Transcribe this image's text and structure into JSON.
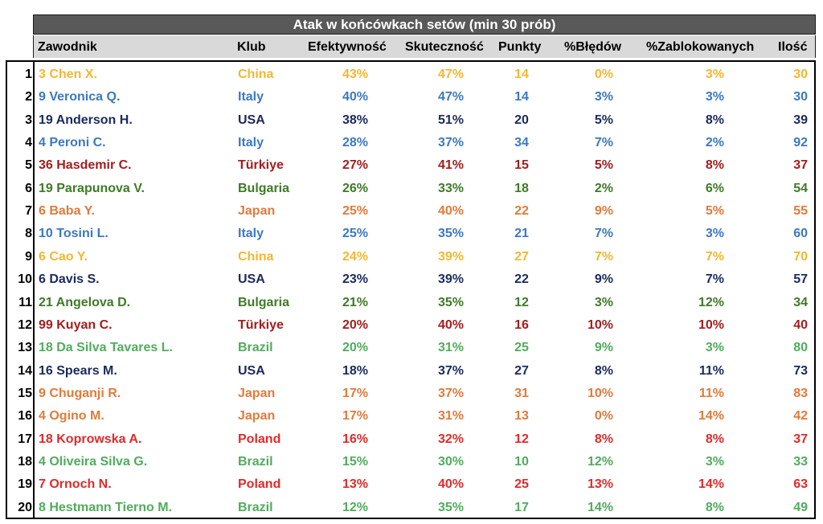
{
  "title": "Atak w końcówkach setów (min 30 prób)",
  "headers": {
    "player": "Zawodnik",
    "club": "Klub",
    "efficiency": "Efektywność",
    "effectiveness": "Skuteczność",
    "points": "Punkty",
    "errors": "%Błędów",
    "blocked": "%Zablokowanych",
    "attempts": "Ilość"
  },
  "club_colors": {
    "China": "#f5b731",
    "Italy": "#3b78c2",
    "USA": "#1a2a5e",
    "Türkiye": "#a31d1d",
    "Bulgaria": "#3f7a27",
    "Japan": "#e27a3a",
    "Brazil": "#4fad5b",
    "Poland": "#e02a2a"
  },
  "rows": [
    {
      "rank": "1",
      "player": "3 Chen X.",
      "club": "China",
      "efficiency": "43%",
      "effectiveness": "47%",
      "points": "14",
      "errors": "0%",
      "blocked": "3%",
      "attempts": "30"
    },
    {
      "rank": "2",
      "player": "9 Veronica Q.",
      "club": "Italy",
      "efficiency": "40%",
      "effectiveness": "47%",
      "points": "14",
      "errors": "3%",
      "blocked": "3%",
      "attempts": "30"
    },
    {
      "rank": "3",
      "player": "19 Anderson H.",
      "club": "USA",
      "efficiency": "38%",
      "effectiveness": "51%",
      "points": "20",
      "errors": "5%",
      "blocked": "8%",
      "attempts": "39"
    },
    {
      "rank": "4",
      "player": "4 Peroni C.",
      "club": "Italy",
      "efficiency": "28%",
      "effectiveness": "37%",
      "points": "34",
      "errors": "7%",
      "blocked": "2%",
      "attempts": "92"
    },
    {
      "rank": "5",
      "player": "36 Hasdemir C.",
      "club": "Türkiye",
      "efficiency": "27%",
      "effectiveness": "41%",
      "points": "15",
      "errors": "5%",
      "blocked": "8%",
      "attempts": "37"
    },
    {
      "rank": "6",
      "player": "19 Parapunova V.",
      "club": "Bulgaria",
      "efficiency": "26%",
      "effectiveness": "33%",
      "points": "18",
      "errors": "2%",
      "blocked": "6%",
      "attempts": "54"
    },
    {
      "rank": "7",
      "player": "6 Baba Y.",
      "club": "Japan",
      "efficiency": "25%",
      "effectiveness": "40%",
      "points": "22",
      "errors": "9%",
      "blocked": "5%",
      "attempts": "55"
    },
    {
      "rank": "8",
      "player": "10 Tosini L.",
      "club": "Italy",
      "efficiency": "25%",
      "effectiveness": "35%",
      "points": "21",
      "errors": "7%",
      "blocked": "3%",
      "attempts": "60"
    },
    {
      "rank": "9",
      "player": "6 Cao Y.",
      "club": "China",
      "efficiency": "24%",
      "effectiveness": "39%",
      "points": "27",
      "errors": "7%",
      "blocked": "7%",
      "attempts": "70"
    },
    {
      "rank": "10",
      "player": "6 Davis S.",
      "club": "USA",
      "efficiency": "23%",
      "effectiveness": "39%",
      "points": "22",
      "errors": "9%",
      "blocked": "7%",
      "attempts": "57"
    },
    {
      "rank": "11",
      "player": "21 Angelova D.",
      "club": "Bulgaria",
      "efficiency": "21%",
      "effectiveness": "35%",
      "points": "12",
      "errors": "3%",
      "blocked": "12%",
      "attempts": "34"
    },
    {
      "rank": "12",
      "player": "99 Kuyan C.",
      "club": "Türkiye",
      "efficiency": "20%",
      "effectiveness": "40%",
      "points": "16",
      "errors": "10%",
      "blocked": "10%",
      "attempts": "40"
    },
    {
      "rank": "13",
      "player": "18 Da Silva Tavares L.",
      "club": "Brazil",
      "efficiency": "20%",
      "effectiveness": "31%",
      "points": "25",
      "errors": "9%",
      "blocked": "3%",
      "attempts": "80"
    },
    {
      "rank": "14",
      "player": "16 Spears M.",
      "club": "USA",
      "efficiency": "18%",
      "effectiveness": "37%",
      "points": "27",
      "errors": "8%",
      "blocked": "11%",
      "attempts": "73"
    },
    {
      "rank": "15",
      "player": "9 Chuganji R.",
      "club": "Japan",
      "efficiency": "17%",
      "effectiveness": "37%",
      "points": "31",
      "errors": "10%",
      "blocked": "11%",
      "attempts": "83"
    },
    {
      "rank": "16",
      "player": "4 Ogino M.",
      "club": "Japan",
      "efficiency": "17%",
      "effectiveness": "31%",
      "points": "13",
      "errors": "0%",
      "blocked": "14%",
      "attempts": "42"
    },
    {
      "rank": "17",
      "player": "18 Koprowska A.",
      "club": "Poland",
      "efficiency": "16%",
      "effectiveness": "32%",
      "points": "12",
      "errors": "8%",
      "blocked": "8%",
      "attempts": "37"
    },
    {
      "rank": "18",
      "player": "4 Oliveira Silva G.",
      "club": "Brazil",
      "efficiency": "15%",
      "effectiveness": "30%",
      "points": "10",
      "errors": "12%",
      "blocked": "3%",
      "attempts": "33"
    },
    {
      "rank": "19",
      "player": "7 Ornoch N.",
      "club": "Poland",
      "efficiency": "13%",
      "effectiveness": "40%",
      "points": "25",
      "errors": "13%",
      "blocked": "14%",
      "attempts": "63"
    },
    {
      "rank": "20",
      "player": "8 Hestmann Tierno M.",
      "club": "Brazil",
      "efficiency": "12%",
      "effectiveness": "35%",
      "points": "17",
      "errors": "14%",
      "blocked": "8%",
      "attempts": "49"
    }
  ]
}
